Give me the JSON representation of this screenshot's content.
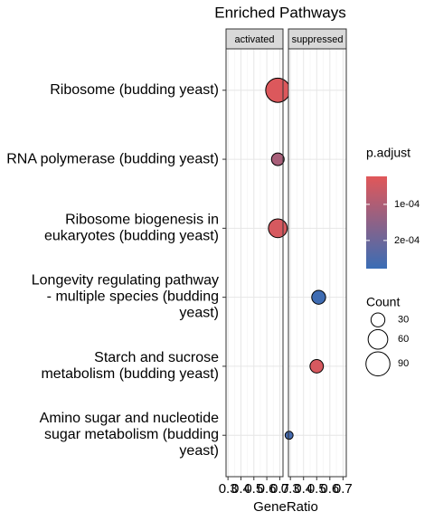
{
  "chart_data": {
    "type": "dot",
    "title": "Enriched Pathways",
    "x_label": "GeneRatio",
    "categories": [
      "Ribosome (budding yeast)",
      "RNA polymerase (budding yeast)",
      "Ribosome biogenesis in\neukaryotes (budding yeast)",
      "Longevity regulating pathway\n- multiple species (budding\nyeast)",
      "Starch and sucrose\nmetabolism (budding yeast)",
      "Amino sugar and nucleotide\nsugar metabolism (budding\nyeast)"
    ],
    "series": [
      {
        "name": "activated",
        "x": [
          0.685,
          0.685,
          0.685,
          null,
          null,
          null
        ],
        "count": [
          92,
          25,
          55,
          null,
          null,
          null
        ],
        "p_adjust": [
          3e-05,
          0.00011,
          4e-05,
          null,
          null,
          null
        ]
      },
      {
        "name": "suppressed",
        "x": [
          null,
          null,
          null,
          0.515,
          0.5,
          0.29
        ],
        "count": [
          null,
          null,
          null,
          30,
          28,
          10
        ],
        "p_adjust": [
          null,
          null,
          null,
          0.00027,
          4e-05,
          0.00026
        ]
      }
    ],
    "xlim": [
      0.285,
      0.725
    ],
    "xticks": [
      0.3,
      0.4,
      0.5,
      0.6,
      0.7
    ],
    "grid": true,
    "color_title": "p.adjust",
    "color_lim": [
      2.25e-05,
      0.000278
    ],
    "color_ticks": [
      {
        "value": 0.0001,
        "label": "1e-04"
      },
      {
        "value": 0.0002,
        "label": "2e-04"
      }
    ],
    "color_low": "#e15759",
    "color_high": "#3a6db5",
    "size_title": "Count",
    "size_breaks": [
      30,
      60,
      90
    ]
  }
}
